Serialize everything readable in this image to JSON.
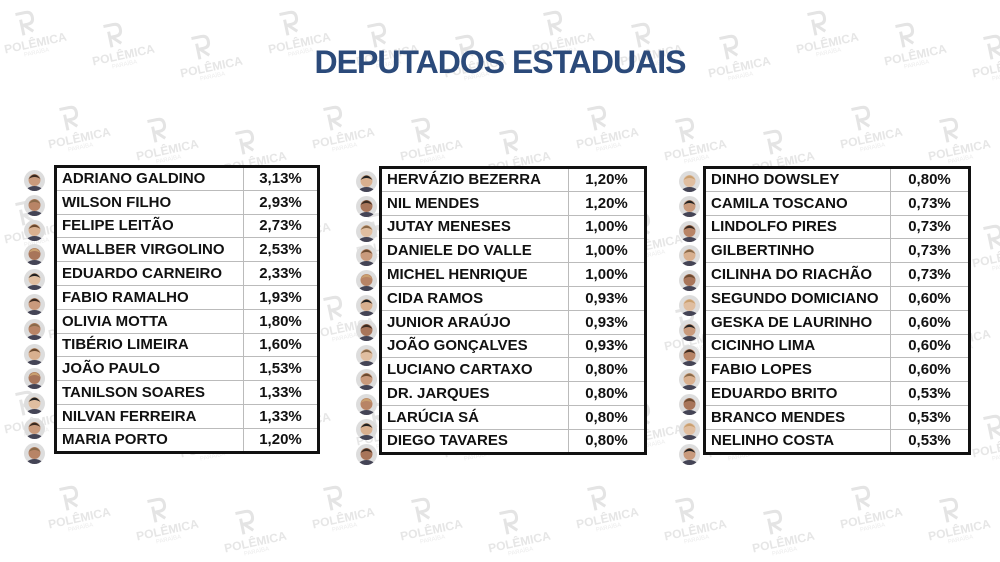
{
  "title": "DEPUTADOS ESTADUAIS",
  "watermark": {
    "brand": "POLÊMICA",
    "sub": "PARAÍBA"
  },
  "tables": [
    {
      "rows": [
        [
          "ADRIANO GALDINO",
          "3,13%"
        ],
        [
          "WILSON FILHO",
          "2,93%"
        ],
        [
          "FELIPE LEITÃO",
          "2,73%"
        ],
        [
          "WALLBER VIRGOLINO",
          "2,53%"
        ],
        [
          "EDUARDO CARNEIRO",
          "2,33%"
        ],
        [
          "FABIO RAMALHO",
          "1,93%"
        ],
        [
          "OLIVIA MOTTA",
          "1,80%"
        ],
        [
          "TIBÉRIO LIMEIRA",
          "1,60%"
        ],
        [
          "JOÃO PAULO",
          "1,53%"
        ],
        [
          "TANILSON SOARES",
          "1,33%"
        ],
        [
          "NILVAN FERREIRA",
          "1,33%"
        ],
        [
          "MARIA PORTO",
          "1,20%"
        ]
      ]
    },
    {
      "rows": [
        [
          "HERVÁZIO BEZERRA",
          "1,20%"
        ],
        [
          "NIL MENDES",
          "1,20%"
        ],
        [
          "JUTAY MENESES",
          "1,00%"
        ],
        [
          "DANIELE DO VALLE",
          "1,00%"
        ],
        [
          "MICHEL HENRIQUE",
          "1,00%"
        ],
        [
          "CIDA RAMOS",
          "0,93%"
        ],
        [
          "JUNIOR ARAÚJO",
          "0,93%"
        ],
        [
          "JOÃO GONÇALVES",
          "0,93%"
        ],
        [
          "LUCIANO CARTAXO",
          "0,80%"
        ],
        [
          "DR. JARQUES",
          "0,80%"
        ],
        [
          "LARÚCIA SÁ",
          "0,80%"
        ],
        [
          "DIEGO TAVARES",
          "0,80%"
        ]
      ]
    },
    {
      "rows": [
        [
          "DINHO DOWSLEY",
          "0,80%"
        ],
        [
          "CAMILA TOSCANO",
          "0,73%"
        ],
        [
          "LINDOLFO PIRES",
          "0,73%"
        ],
        [
          "GILBERTINHO",
          "0,73%"
        ],
        [
          "CILINHA DO RIACHÃO",
          "0,73%"
        ],
        [
          "SEGUNDO DOMICIANO",
          "0,60%"
        ],
        [
          "GESKA DE LAURINHO",
          "0,60%"
        ],
        [
          "CICINHO LIMA",
          "0,60%"
        ],
        [
          "FABIO LOPES",
          "0,60%"
        ],
        [
          "EDUARDO BRITO",
          "0,53%"
        ],
        [
          "BRANCO MENDES",
          "0,53%"
        ],
        [
          "NELINHO COSTA",
          "0,53%"
        ]
      ]
    }
  ]
}
